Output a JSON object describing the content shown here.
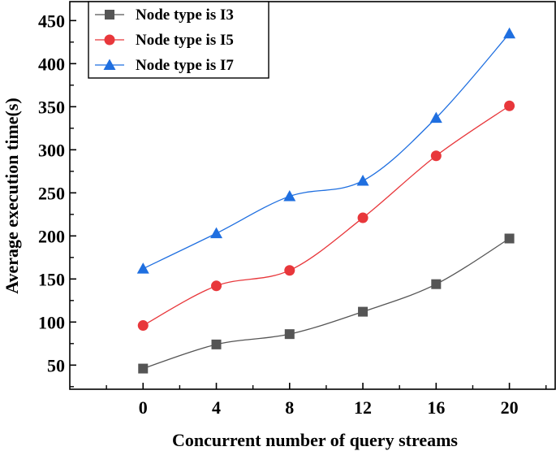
{
  "chart_data": {
    "type": "line",
    "title": "",
    "xlabel": "Concurrent number of query streams",
    "ylabel": "Average execution time(s)",
    "x": [
      0,
      4,
      8,
      12,
      16,
      20
    ],
    "x_ticks": [
      "0",
      "4",
      "8",
      "12",
      "16",
      "20"
    ],
    "y_ticks": [
      "50",
      "100",
      "150",
      "200",
      "250",
      "300",
      "350",
      "400",
      "450"
    ],
    "xlim": [
      -4,
      22.5
    ],
    "ylim": [
      22,
      472
    ],
    "legend_position": "top-left",
    "series": [
      {
        "name": "Node type is I3",
        "marker": "square",
        "color": "#555555",
        "values": [
          46,
          74,
          86,
          112,
          144,
          197
        ]
      },
      {
        "name": "Node type is I5",
        "marker": "circle",
        "color": "#e8373b",
        "values": [
          96,
          142,
          160,
          221,
          293,
          351
        ]
      },
      {
        "name": "Node type is I7",
        "marker": "triangle",
        "color": "#1f6fe0",
        "values": [
          162,
          203,
          246,
          264,
          337,
          435
        ]
      }
    ]
  }
}
